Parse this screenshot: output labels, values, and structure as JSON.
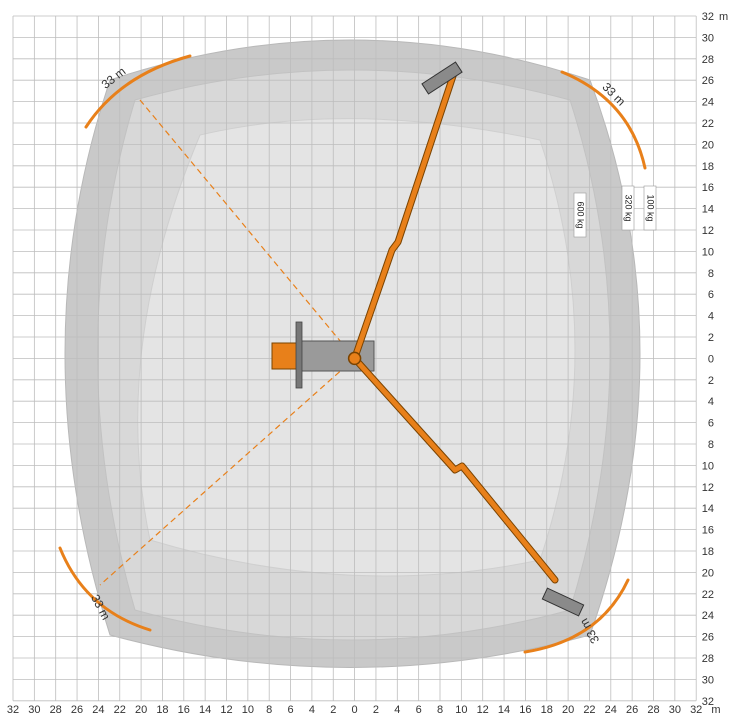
{
  "units": "m",
  "x_axis": {
    "ticks": [
      "32",
      "30",
      "28",
      "26",
      "24",
      "22",
      "20",
      "18",
      "16",
      "14",
      "12",
      "10",
      "8",
      "6",
      "4",
      "2",
      "0",
      "2",
      "4",
      "6",
      "8",
      "10",
      "12",
      "14",
      "16",
      "18",
      "20",
      "22",
      "24",
      "26",
      "28",
      "30",
      "32"
    ],
    "unit_label": "m"
  },
  "y_axis": {
    "ticks": [
      "32",
      "30",
      "28",
      "26",
      "24",
      "22",
      "20",
      "18",
      "16",
      "14",
      "12",
      "10",
      "8",
      "6",
      "4",
      "2",
      "0",
      "2",
      "4",
      "6",
      "8",
      "10",
      "12",
      "14",
      "16",
      "18",
      "20",
      "22",
      "24",
      "26",
      "28",
      "30",
      "32"
    ],
    "unit_label": "m"
  },
  "reach_labels": [
    "33 m",
    "33 m",
    "33 m",
    "33 m"
  ],
  "load_zones": [
    "100 kg",
    "320 kg",
    "600 kg"
  ],
  "colors": {
    "grid": "#bdbdbd",
    "outer_zone": "#c9c9c9",
    "middle_zone": "#d8d8d8",
    "inner_zone": "#e4e4e4",
    "boom": "#e8801a",
    "boom_outline": "#7a4300",
    "chassis": "#9a9a9a",
    "cab": "#e8801a",
    "basket": "#8a8a8a",
    "dashed_line": "#e8801a"
  }
}
